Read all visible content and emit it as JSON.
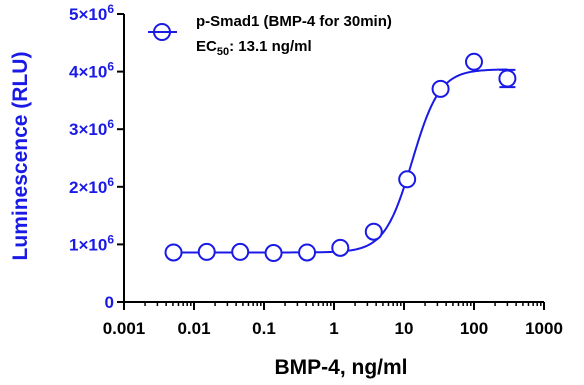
{
  "colors": {
    "series": "#1a1ae6",
    "ytick": "#1a1ae6",
    "axis": "#000000",
    "text": "#000000"
  },
  "chart_data": {
    "type": "scatter",
    "xscale": "log",
    "xlim": [
      0.001,
      1000
    ],
    "ylim": [
      0,
      5000000
    ],
    "xlabel": "BMP-4, ng/ml",
    "ylabel": "Luminescence (RLU)",
    "xticks": [
      {
        "value": 0.001,
        "label": "0.001"
      },
      {
        "value": 0.01,
        "label": "0.01"
      },
      {
        "value": 0.1,
        "label": "0.1"
      },
      {
        "value": 1,
        "label": "1"
      },
      {
        "value": 10,
        "label": "10"
      },
      {
        "value": 100,
        "label": "100"
      },
      {
        "value": 1000,
        "label": "1000"
      }
    ],
    "yticks": [
      {
        "value": 0,
        "base": "0",
        "exp": ""
      },
      {
        "value": 1000000,
        "base": "1×10",
        "exp": "6"
      },
      {
        "value": 2000000,
        "base": "2×10",
        "exp": "6"
      },
      {
        "value": 3000000,
        "base": "3×10",
        "exp": "6"
      },
      {
        "value": 4000000,
        "base": "4×10",
        "exp": "6"
      },
      {
        "value": 5000000,
        "base": "5×10",
        "exp": "6"
      }
    ],
    "legend": {
      "position": "top-left",
      "line1": "p-Smad1 (BMP-4 for 30min)",
      "ec50_prefix": "EC",
      "ec50_sub": "50",
      "ec50_rest": ": 13.1 ng/ml"
    },
    "series": [
      {
        "name": "p-Smad1 (BMP-4 for 30min)",
        "points": [
          {
            "x": 0.0051,
            "y": 860000
          },
          {
            "x": 0.0152,
            "y": 870000
          },
          {
            "x": 0.0457,
            "y": 870000
          },
          {
            "x": 0.137,
            "y": 850000
          },
          {
            "x": 0.412,
            "y": 860000
          },
          {
            "x": 1.23,
            "y": 940000
          },
          {
            "x": 3.7,
            "y": 1220000
          },
          {
            "x": 11.1,
            "y": 2130000
          },
          {
            "x": 33.3,
            "y": 3700000
          },
          {
            "x": 100,
            "y": 4170000
          },
          {
            "x": 300,
            "y": 3880000,
            "err": 150000
          }
        ],
        "fit": {
          "bottom": 860000,
          "top": 4040000,
          "ec50": 13.1,
          "hill": 2.2
        }
      }
    ]
  }
}
